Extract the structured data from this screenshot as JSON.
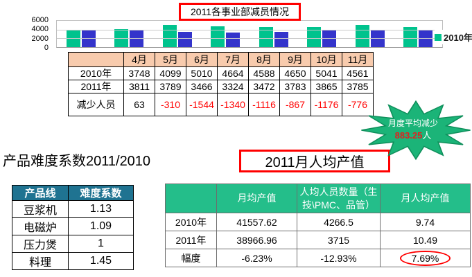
{
  "chart": {
    "title": "2011各事业部减员情况",
    "legend_label": "2010年",
    "y_ticks": [
      "6000",
      "4000",
      "2000",
      "0"
    ]
  },
  "chart_data": {
    "type": "bar",
    "title": "2011各事业部减员情况",
    "categories": [
      "4月",
      "5月",
      "6月",
      "7月",
      "8月",
      "9月",
      "10月",
      "11月"
    ],
    "series": [
      {
        "name": "2010年",
        "values": [
          3748,
          4099,
          5010,
          4664,
          4588,
          4650,
          5041,
          4561
        ]
      },
      {
        "name": "2011年",
        "values": [
          3811,
          3789,
          3466,
          3324,
          3472,
          3783,
          3865,
          3785
        ]
      }
    ],
    "colors": [
      "#00C38D",
      "#3434CB"
    ],
    "ylim": [
      0,
      6000
    ],
    "grid": true,
    "legend_position": "right"
  },
  "reduction_table": {
    "months": [
      "4月",
      "5月",
      "6月",
      "7月",
      "8月",
      "9月",
      "10月",
      "11月"
    ],
    "rows": [
      {
        "label": "2010年",
        "values": [
          "3748",
          "4099",
          "5010",
          "4664",
          "4588",
          "4650",
          "5041",
          "4561"
        ]
      },
      {
        "label": "2011年",
        "values": [
          "3811",
          "3789",
          "3466",
          "3324",
          "3472",
          "3783",
          "3865",
          "3785"
        ]
      },
      {
        "label": "减少人员",
        "values": [
          "63",
          "-310",
          "-1544",
          "-1340",
          "-1116",
          "-867",
          "-1176",
          "-776"
        ]
      }
    ]
  },
  "starburst": {
    "line1": "月度平均减少",
    "value": "883.25",
    "unit": "人"
  },
  "difficulty": {
    "title": "产品难度系数2011/2010",
    "headers": [
      "产品线",
      "难度系数"
    ],
    "rows": [
      [
        "豆浆机",
        "1.13"
      ],
      [
        "电磁炉",
        "1.09"
      ],
      [
        "压力煲",
        "1"
      ],
      [
        "料理",
        "1.45"
      ]
    ]
  },
  "productivity": {
    "title": "2011月人均产值",
    "headers": [
      "",
      "月均产值",
      "人均人员数量（生技\\PMC、品管）",
      "月人均产值"
    ],
    "rows": [
      [
        "2010年",
        "41557.62",
        "4266.5",
        "9.74"
      ],
      [
        "2011年",
        "38966.96",
        "3715",
        "10.49"
      ],
      [
        "幅度",
        "-6.23%",
        "-12.93%",
        "7.69%"
      ]
    ],
    "circled_value": "7.69%"
  },
  "colors": {
    "bar_2010": "#00C38D",
    "bar_2011": "#3434CB",
    "reduction_header_bg": "#F8CBAD",
    "difficulty_header_bg": "#1F7391",
    "productivity_header_bg": "#24BE8A",
    "starburst_fill": "#1BB478",
    "highlight_red": "#FF0000"
  }
}
